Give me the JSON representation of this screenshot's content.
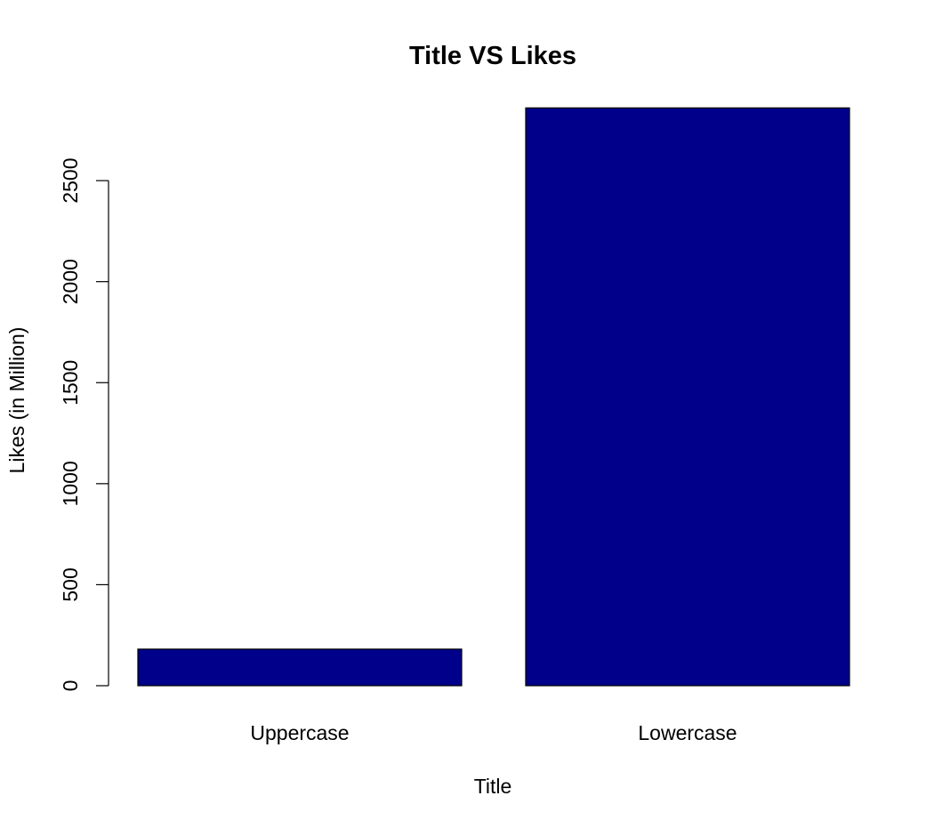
{
  "chart_data": {
    "type": "bar",
    "title": "Title VS Likes",
    "xlabel": "Title",
    "ylabel": "Likes (in Million)",
    "categories": [
      "Uppercase",
      "Lowercase"
    ],
    "values": [
      181,
      2860
    ],
    "yticks": [
      0,
      500,
      1000,
      1500,
      2000,
      2500
    ],
    "ylim": [
      0,
      2860
    ],
    "grid": false,
    "legend": "none",
    "bar_color": "#00008B",
    "bar_border_color": "#000000"
  }
}
